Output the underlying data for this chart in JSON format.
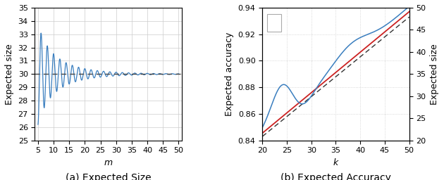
{
  "left": {
    "xlabel": "m",
    "ylabel": "Expected size",
    "xlim": [
      4,
      51
    ],
    "ylim": [
      25,
      35
    ],
    "yticks": [
      25,
      26,
      27,
      28,
      29,
      30,
      31,
      32,
      33,
      34,
      35
    ],
    "xticks": [
      5,
      10,
      15,
      20,
      25,
      30,
      35,
      40,
      45,
      50
    ],
    "hline_y": 30,
    "hline_color": "#444444",
    "line_color": "#3a7ebf",
    "caption": "(a) Expected Size"
  },
  "right": {
    "xlabel": "k",
    "ylabel_left": "Expected accuracy",
    "ylabel_right": "Expected size",
    "xlim": [
      20,
      50
    ],
    "ylim_left": [
      0.84,
      0.94
    ],
    "ylim_right": [
      20,
      50
    ],
    "yticks_left": [
      0.84,
      0.86,
      0.88,
      0.9,
      0.92,
      0.94
    ],
    "yticks_right": [
      20,
      25,
      30,
      35,
      40,
      45,
      50
    ],
    "xticks": [
      20,
      25,
      30,
      35,
      40,
      45,
      50
    ],
    "blue_color": "#3a7ebf",
    "red_color": "#cc2222",
    "black_color": "#333333",
    "caption": "(b) Expected Accuracy"
  },
  "caption_fontsize": 10,
  "label_fontsize": 9,
  "tick_fontsize": 8
}
